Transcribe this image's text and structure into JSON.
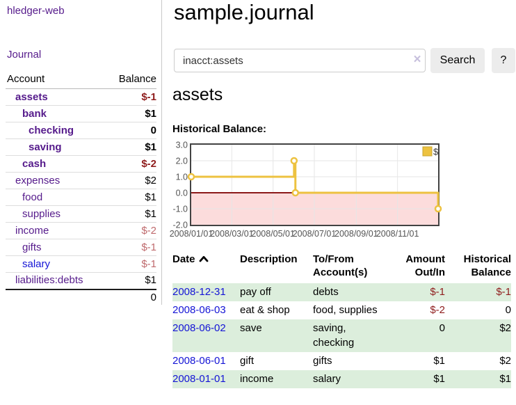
{
  "brand": {
    "title": "hledger-web"
  },
  "nav": {
    "journal": "Journal"
  },
  "sidebar": {
    "header": {
      "account": "Account",
      "balance": "Balance"
    },
    "accounts": [
      {
        "name": "assets",
        "indent": 1,
        "bold": true,
        "balance": "$-1",
        "neg": "strong",
        "link": "purple"
      },
      {
        "name": "bank",
        "indent": 2,
        "bold": true,
        "balance": "$1",
        "neg": "none",
        "link": "purple"
      },
      {
        "name": "checking",
        "indent": 3,
        "bold": true,
        "balance": "0",
        "neg": "none",
        "link": "purple"
      },
      {
        "name": "saving",
        "indent": 3,
        "bold": true,
        "balance": "$1",
        "neg": "none",
        "link": "purple"
      },
      {
        "name": "cash",
        "indent": 2,
        "bold": true,
        "balance": "$-2",
        "neg": "strong",
        "link": "purple"
      },
      {
        "name": "expenses",
        "indent": 1,
        "bold": false,
        "balance": "$2",
        "neg": "none",
        "link": "purple"
      },
      {
        "name": "food",
        "indent": 2,
        "bold": false,
        "balance": "$1",
        "neg": "none",
        "link": "purple"
      },
      {
        "name": "supplies",
        "indent": 2,
        "bold": false,
        "balance": "$1",
        "neg": "none",
        "link": "purple"
      },
      {
        "name": "income",
        "indent": 1,
        "bold": false,
        "balance": "$-2",
        "neg": "faded",
        "link": "purple"
      },
      {
        "name": "gifts",
        "indent": 2,
        "bold": false,
        "balance": "$-1",
        "neg": "faded",
        "link": "purple"
      },
      {
        "name": "salary",
        "indent": 2,
        "bold": false,
        "balance": "$-1",
        "neg": "faded",
        "link": "blue"
      },
      {
        "name": "liabilities:debts",
        "indent": 1,
        "bold": false,
        "balance": "$1",
        "neg": "none",
        "link": "purple"
      }
    ],
    "total": "0"
  },
  "main": {
    "title": "sample.journal"
  },
  "search": {
    "value": "inacct:assets",
    "clear": "×",
    "search_label": "Search",
    "help_label": "?"
  },
  "account_view": {
    "heading": "assets",
    "chart_title": "Historical Balance:"
  },
  "chart_data": {
    "type": "line",
    "style": "step-after",
    "title": "Historical Balance",
    "series": [
      {
        "name": "$",
        "color": "#EDC240",
        "points": [
          [
            "2008-01-01",
            1
          ],
          [
            "2008-06-01",
            2
          ],
          [
            "2008-06-03",
            0
          ],
          [
            "2008-12-31",
            -1
          ]
        ]
      }
    ],
    "x_ticks": [
      "2008/01/01",
      "2008/03/01",
      "2008/05/01",
      "2008/07/01",
      "2008/09/01",
      "2008/11/01"
    ],
    "y_ticks": [
      3,
      2,
      1,
      0,
      -1,
      -2
    ],
    "y_tick_labels": [
      "3.0",
      "2.0",
      "1.0",
      "0.0",
      "-1.0",
      "-2.0"
    ],
    "xlim": [
      "2008-01-01",
      "2008-12-31"
    ],
    "ylim": [
      -2,
      3
    ],
    "grid": true,
    "legend": {
      "label": "$",
      "position": "top-right"
    },
    "negative_region_color": "#fcdcdc",
    "zero_line_color": "#8b1a1a",
    "tick_color": "#545454",
    "border_color": "#424242",
    "gridline_color": "#e6e6e6"
  },
  "register": {
    "columns": {
      "date": "Date",
      "description": "Description",
      "accounts_l1": "To/From",
      "accounts_l2": "Account(s)",
      "amount_l1": "Amount",
      "amount_l2": "Out/In",
      "balance_l1": "Historical",
      "balance_l2": "Balance"
    },
    "sort": {
      "column": "date",
      "direction": "ascending"
    },
    "rows": [
      {
        "date": "2008-12-31",
        "description": "pay off",
        "accounts_lines": [
          "debts"
        ],
        "amount": "$-1",
        "amount_neg": true,
        "balance": "$-1",
        "balance_neg": true,
        "shaded": true
      },
      {
        "date": "2008-06-03",
        "description": "eat & shop",
        "accounts_lines": [
          "food, supplies"
        ],
        "amount": "$-2",
        "amount_neg": true,
        "balance": "0",
        "balance_neg": false,
        "shaded": false
      },
      {
        "date": "2008-06-02",
        "description": "save",
        "accounts_lines": [
          "saving,",
          "checking"
        ],
        "amount": "0",
        "amount_neg": false,
        "balance": "$2",
        "balance_neg": false,
        "shaded": true
      },
      {
        "date": "2008-06-01",
        "description": "gift",
        "accounts_lines": [
          "gifts"
        ],
        "amount": "$1",
        "amount_neg": false,
        "balance": "$2",
        "balance_neg": false,
        "shaded": false
      },
      {
        "date": "2008-01-01",
        "description": "income",
        "accounts_lines": [
          "salary"
        ],
        "amount": "$1",
        "amount_neg": false,
        "balance": "$1",
        "balance_neg": false,
        "shaded": true
      }
    ]
  },
  "colors": {
    "link_purple": "#551a8b",
    "link_blue": "#1414d6",
    "negative_strong": "#8f1d1d",
    "negative_faded": "#bf6a6d",
    "row_green": "#dceedc",
    "accent_gold": "#EDC240"
  }
}
